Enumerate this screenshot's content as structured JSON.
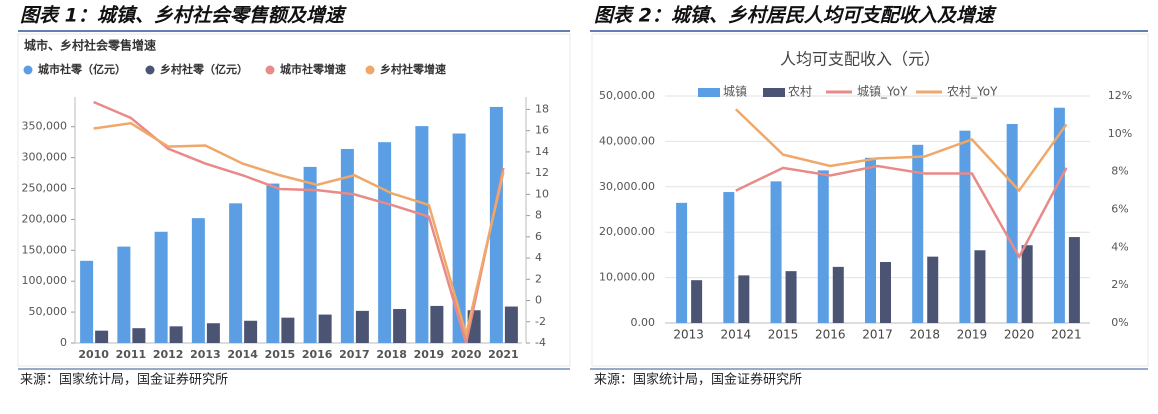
{
  "chart_data": [
    {
      "type": "bar",
      "heading": "图表 1：城镇、乡村社会零售额及增速",
      "title": "城市、乡村社会零售增速",
      "source": "来源：国家统计局，国金证券研究所",
      "categories": [
        "2010",
        "2011",
        "2012",
        "2013",
        "2014",
        "2015",
        "2016",
        "2017",
        "2018",
        "2019",
        "2020",
        "2021"
      ],
      "series": [
        {
          "name": "城市社零（亿元）",
          "color": "#5b9ee3",
          "type": "bar",
          "values": [
            133000,
            156000,
            180000,
            202000,
            226000,
            258000,
            285000,
            314000,
            325000,
            351000,
            339000,
            382000
          ]
        },
        {
          "name": "乡村社零（亿元）",
          "color": "#4b5573",
          "type": "bar",
          "values": [
            20000,
            24000,
            27000,
            32000,
            36000,
            41000,
            46000,
            52000,
            55000,
            60000,
            53000,
            59000
          ]
        },
        {
          "name": "城市社零增速",
          "color": "#e88a88",
          "type": "line",
          "axis": "y2",
          "values": [
            18.7,
            17.2,
            14.3,
            12.9,
            11.8,
            10.5,
            10.4,
            10.0,
            9.0,
            7.9,
            -4.0,
            12.5
          ]
        },
        {
          "name": "乡村社零增速",
          "color": "#efa86a",
          "type": "line",
          "axis": "y2",
          "values": [
            16.2,
            16.7,
            14.5,
            14.6,
            12.9,
            11.8,
            10.9,
            11.8,
            10.1,
            9.0,
            -3.2,
            12.1
          ]
        }
      ],
      "ylim": [
        0,
        390000
      ],
      "yticks": [
        0,
        {
          "value": 50000,
          "label": "50,000"
        },
        {
          "value": 100000,
          "label": "100,000"
        },
        {
          "value": 150000,
          "label": "150,000"
        },
        {
          "value": 200000,
          "label": "200,000"
        },
        {
          "value": 250000,
          "label": "250,000"
        },
        {
          "value": 300000,
          "label": "300,000"
        },
        {
          "value": 350000,
          "label": "350,000"
        }
      ],
      "y2lim": [
        -4,
        18.7
      ],
      "y2ticks": [
        -4,
        -2,
        0,
        2,
        4,
        6,
        8,
        10,
        12,
        14,
        16,
        18
      ],
      "grid": false
    },
    {
      "type": "bar",
      "heading": "图表 2：城镇、乡村居民人均可支配收入及增速",
      "title": "人均可支配收入（元）",
      "source": "来源：国家统计局，国金证券研究所",
      "categories": [
        "2013",
        "2014",
        "2015",
        "2016",
        "2017",
        "2018",
        "2019",
        "2020",
        "2021"
      ],
      "series": [
        {
          "name": "城镇",
          "color": "#5b9ee3",
          "type": "bar",
          "values": [
            26467,
            28844,
            31195,
            33616,
            36396,
            39251,
            42359,
            43834,
            47412
          ]
        },
        {
          "name": "农村",
          "color": "#4b5573",
          "type": "bar",
          "values": [
            9430,
            10489,
            11422,
            12363,
            13432,
            14617,
            16021,
            17131,
            18931
          ]
        },
        {
          "name": "城镇_YoY",
          "color": "#e88a88",
          "type": "line",
          "axis": "y2",
          "values": [
            null,
            7.0,
            8.2,
            7.8,
            8.3,
            7.9,
            7.9,
            3.5,
            8.2
          ]
        },
        {
          "name": "农村_YoY",
          "color": "#efa86a",
          "type": "line",
          "axis": "y2",
          "values": [
            null,
            11.3,
            8.9,
            8.3,
            8.7,
            8.8,
            9.7,
            7.0,
            10.5
          ]
        }
      ],
      "ylim": [
        0,
        50000
      ],
      "yticks": [
        {
          "value": 0,
          "label": "0.00"
        },
        {
          "value": 10000,
          "label": "10,000.00"
        },
        {
          "value": 20000,
          "label": "20,000.00"
        },
        {
          "value": 30000,
          "label": "30,000.00"
        },
        {
          "value": 40000,
          "label": "40,000.00"
        },
        {
          "value": 50000,
          "label": "50,000.00"
        }
      ],
      "y2lim": [
        0,
        12
      ],
      "y2ticks": [
        {
          "value": 0,
          "label": "0%"
        },
        {
          "value": 2,
          "label": "2%"
        },
        {
          "value": 4,
          "label": "4%"
        },
        {
          "value": 6,
          "label": "6%"
        },
        {
          "value": 8,
          "label": "8%"
        },
        {
          "value": 10,
          "label": "10%"
        },
        {
          "value": 12,
          "label": "12%"
        }
      ],
      "grid": true
    }
  ]
}
